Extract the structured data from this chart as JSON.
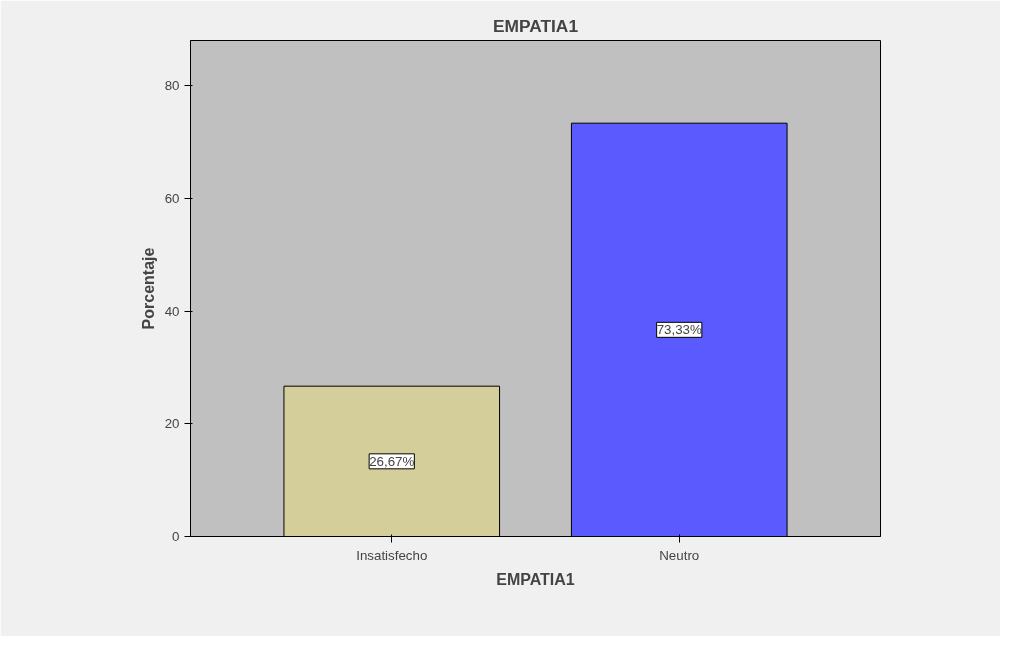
{
  "chart_data": {
    "type": "bar",
    "title": "EMPATIA1",
    "xlabel": "EMPATIA1",
    "ylabel": "Porcentaje",
    "categories": [
      "Insatisfecho",
      "Neutro"
    ],
    "values": [
      26.67,
      73.33
    ],
    "colors": [
      "#d4cf9a",
      "#5a5aff"
    ],
    "value_labels": [
      "26,67%",
      "73,33%"
    ],
    "ylim": [
      0,
      88
    ],
    "yticks": [
      0,
      20,
      40,
      60,
      80
    ],
    "grid": false
  }
}
